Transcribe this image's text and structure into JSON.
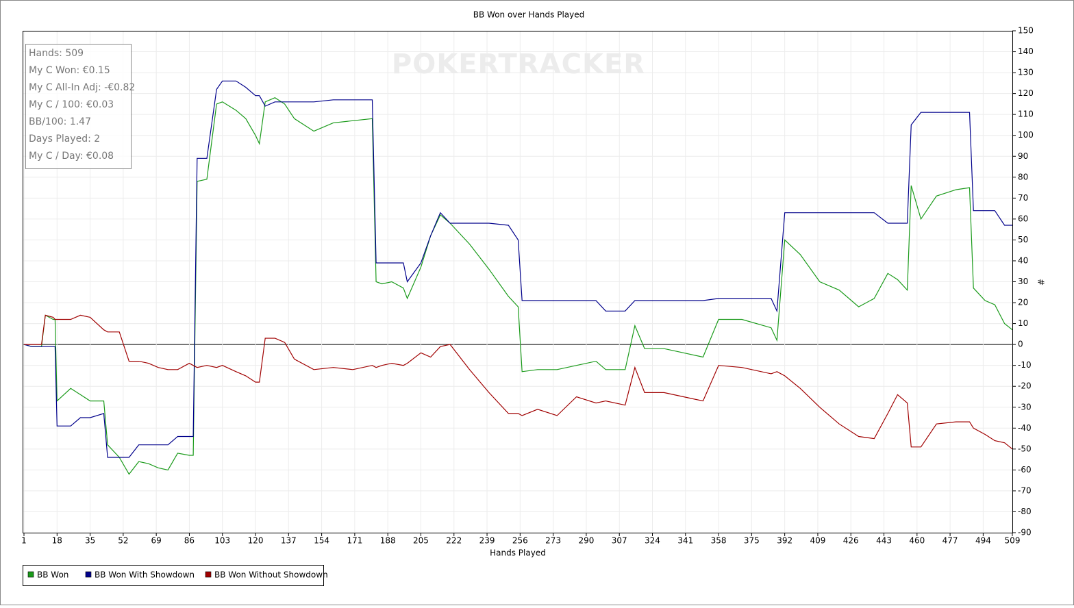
{
  "chart_data": {
    "type": "line",
    "title": "BB Won over Hands Played",
    "watermark": "POKERTRACKER",
    "x_label": "Hands Played",
    "y_label": "#",
    "stats": [
      "Hands: 509",
      "My C Won: €0.15",
      "My C All-In Adj: -€0.82",
      "My C / 100: €0.03",
      "BB/100: 1.47",
      "Days Played: 2",
      "My C / Day: €0.08"
    ],
    "xlim": [
      1,
      509
    ],
    "ylim": [
      -90,
      150
    ],
    "xticks": [
      1,
      18,
      35,
      52,
      69,
      86,
      103,
      120,
      137,
      154,
      171,
      188,
      205,
      222,
      239,
      256,
      273,
      290,
      307,
      324,
      341,
      358,
      375,
      392,
      409,
      426,
      443,
      460,
      477,
      494,
      509
    ],
    "yticks": [
      -90,
      -80,
      -70,
      -60,
      -50,
      -40,
      -30,
      -20,
      -10,
      0,
      10,
      20,
      30,
      40,
      50,
      60,
      70,
      80,
      90,
      100,
      110,
      120,
      130,
      140,
      150
    ],
    "grid": true,
    "legend": "bottom-left",
    "x": [
      1,
      5,
      10,
      12,
      16,
      17,
      18,
      25,
      30,
      35,
      42,
      44,
      50,
      55,
      60,
      65,
      70,
      75,
      80,
      86,
      88,
      90,
      95,
      100,
      103,
      110,
      115,
      120,
      122,
      125,
      130,
      135,
      140,
      150,
      160,
      170,
      180,
      182,
      185,
      190,
      196,
      198,
      205,
      210,
      215,
      220,
      230,
      240,
      250,
      255,
      257,
      265,
      275,
      285,
      295,
      300,
      310,
      315,
      320,
      330,
      340,
      350,
      358,
      370,
      385,
      388,
      392,
      400,
      410,
      420,
      430,
      438,
      445,
      450,
      455,
      457,
      462,
      470,
      480,
      487,
      489,
      495,
      500,
      505,
      509
    ],
    "series": [
      {
        "name": "BB Won",
        "color": "#1a9a1a",
        "values": [
          0,
          -1,
          -1,
          14,
          12,
          12,
          -27,
          -21,
          -24,
          -27,
          -27,
          -48,
          -54,
          -62,
          -56,
          -57,
          -59,
          -60,
          -52,
          -53,
          -53,
          78,
          79,
          115,
          116,
          112,
          108,
          100,
          96,
          116,
          118,
          115,
          108,
          102,
          106,
          107,
          108,
          30,
          29,
          30,
          27,
          22,
          37,
          52,
          62,
          58,
          48,
          36,
          23,
          18,
          -13,
          -12,
          -12,
          -10,
          -8,
          -12,
          -12,
          9,
          -2,
          -2,
          -4,
          -6,
          12,
          12,
          8,
          2,
          50,
          43,
          30,
          26,
          18,
          22,
          34,
          31,
          26,
          76,
          60,
          71,
          74,
          75,
          27,
          21,
          19,
          10,
          7
        ]
      },
      {
        "name": "BB Won With Showdown",
        "color": "#00008b",
        "values": [
          0,
          -1,
          -1,
          -1,
          -1,
          -1,
          -39,
          -39,
          -35,
          -35,
          -33,
          -54,
          -54,
          -54,
          -48,
          -48,
          -48,
          -48,
          -44,
          -44,
          -44,
          89,
          89,
          122,
          126,
          126,
          123,
          119,
          119,
          114,
          116,
          116,
          116,
          116,
          117,
          117,
          117,
          39,
          39,
          39,
          39,
          30,
          39,
          52,
          63,
          58,
          58,
          58,
          57,
          50,
          21,
          21,
          21,
          21,
          21,
          16,
          16,
          21,
          21,
          21,
          21,
          21,
          22,
          22,
          22,
          16,
          63,
          63,
          63,
          63,
          63,
          63,
          58,
          58,
          58,
          105,
          111,
          111,
          111,
          111,
          64,
          64,
          64,
          57,
          57
        ]
      },
      {
        "name": "BB Won Without Showdown",
        "color": "#a00000",
        "values": [
          0,
          0,
          0,
          14,
          13,
          12,
          12,
          12,
          14,
          13,
          7,
          6,
          6,
          -8,
          -8,
          -9,
          -11,
          -12,
          -12,
          -9,
          -10,
          -11,
          -10,
          -11,
          -10,
          -13,
          -15,
          -18,
          -18,
          3,
          3,
          1,
          -7,
          -12,
          -11,
          -12,
          -10,
          -11,
          -10,
          -9,
          -10,
          -9,
          -4,
          -6,
          -1,
          0,
          -12,
          -23,
          -33,
          -33,
          -34,
          -31,
          -34,
          -25,
          -28,
          -27,
          -29,
          -11,
          -23,
          -23,
          -25,
          -27,
          -10,
          -11,
          -14,
          -13,
          -15,
          -21,
          -30,
          -38,
          -44,
          -45,
          -33,
          -24,
          -28,
          -49,
          -49,
          -38,
          -37,
          -37,
          -40,
          -43,
          -46,
          -47,
          -50
        ]
      }
    ]
  }
}
